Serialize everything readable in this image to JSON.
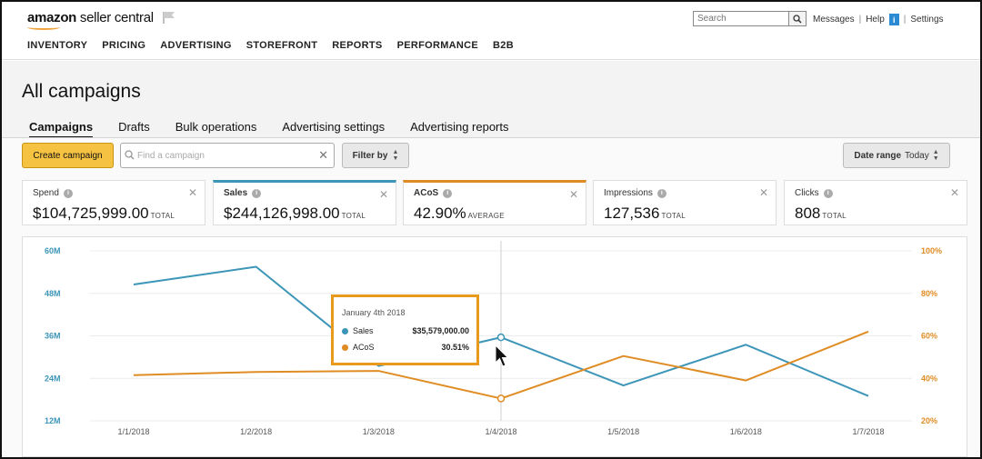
{
  "header": {
    "logo_brand": "amazon",
    "logo_product": " seller central",
    "search_placeholder": "Search",
    "links": {
      "messages": "Messages",
      "help": "Help",
      "help_badge": "i",
      "settings": "Settings"
    }
  },
  "nav": [
    "INVENTORY",
    "PRICING",
    "ADVERTISING",
    "STOREFRONT",
    "REPORTS",
    "PERFORMANCE",
    "B2B"
  ],
  "page": {
    "title": "All campaigns",
    "tabs": [
      "Campaigns",
      "Drafts",
      "Bulk operations",
      "Advertising settings",
      "Advertising reports"
    ],
    "active_tab": "Campaigns"
  },
  "toolbar": {
    "create_label": "Create campaign",
    "find_placeholder": "Find a campaign",
    "filter_label": "Filter by",
    "date_label": "Date range",
    "date_value": "Today"
  },
  "metrics": [
    {
      "label": "Spend",
      "value": "$104,725,999.00",
      "suffix": "TOTAL",
      "selected": ""
    },
    {
      "label": "Sales",
      "value": "$244,126,998.00",
      "suffix": "TOTAL",
      "selected": "sales"
    },
    {
      "label": "ACoS",
      "value": "42.90%",
      "suffix": "AVERAGE",
      "selected": "acos"
    },
    {
      "label": "Impressions",
      "value": "127,536",
      "suffix": "TOTAL",
      "selected": ""
    },
    {
      "label": "Clicks",
      "value": "808",
      "suffix": "TOTAL",
      "selected": ""
    }
  ],
  "colors": {
    "sales": "#3d95b8",
    "acos": "#e08c24",
    "accent": "#f5c242"
  },
  "chart_data": {
    "type": "line",
    "x": [
      "1/1/2018",
      "1/2/2018",
      "1/3/2018",
      "1/4/2018",
      "1/5/2018",
      "1/6/2018",
      "1/7/2018"
    ],
    "y_left": {
      "ticks": [
        "60M",
        "48M",
        "36M",
        "24M",
        "12M"
      ],
      "range": [
        12000000,
        60000000
      ]
    },
    "y_right": {
      "ticks": [
        "100%",
        "80%",
        "60%",
        "40%",
        "20%"
      ],
      "range": [
        20,
        100
      ]
    },
    "series": [
      {
        "name": "Sales",
        "axis": "left",
        "values": [
          50500000,
          55500000,
          27500000,
          35579000,
          22000000,
          33500000,
          19000000
        ]
      },
      {
        "name": "ACoS",
        "axis": "right",
        "values": [
          41.5,
          43.0,
          43.5,
          30.51,
          50.5,
          39.0,
          62.0
        ]
      }
    ],
    "hover_index": 3,
    "tooltip": {
      "date": "January 4th 2018",
      "rows": [
        {
          "name": "Sales",
          "value": "$35,579,000.00"
        },
        {
          "name": "ACoS",
          "value": "30.51%"
        }
      ]
    },
    "grid": true
  }
}
